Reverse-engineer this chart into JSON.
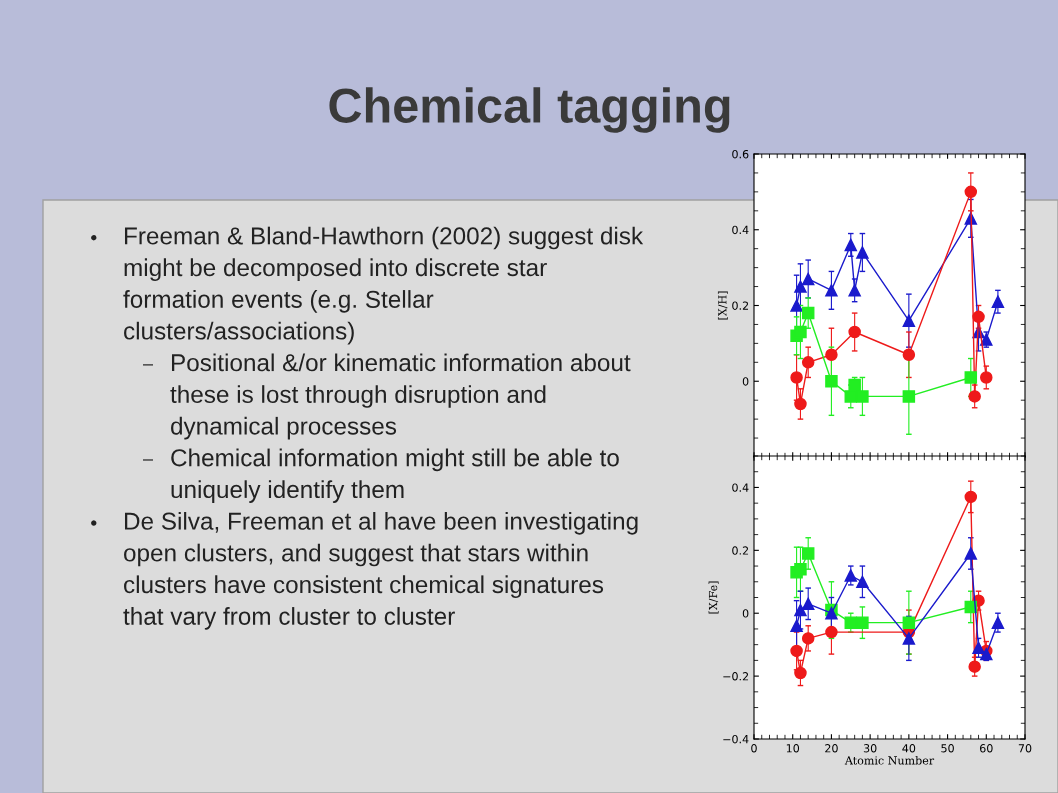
{
  "chart_data": [
    {
      "type": "line",
      "title": "Chemical tagging",
      "ylabel": "[X/H]",
      "annotations": [
        "● Freeman & Bland-Hawthorn (2002) suggest disk\nmight be decomposed into discrete star\nformation events (e.g. Stellar\nclusters/associations)",
        "– Positional &/or kinematic information about\nthese is lost through disruption and\ndynamical processes",
        "– Chemical information might still be able to\nuniquely identify them",
        "● De Silva, Freeman et al have been investigating\nopen clusters, and suggest that stars within\nclusters have consistent chemical signatures\nthat vary from cluster to cluster"
      ],
      "xlim": [
        0,
        70
      ],
      "xticks": [
        0,
        10,
        20,
        30,
        40,
        50,
        60,
        70
      ],
      "ylim": [
        -0.2,
        0.6
      ],
      "yticks": [
        0,
        0.2,
        0.4,
        0.6
      ],
      "tick_labels": "y",
      "series": [
        {
          "color": "#1a1acc",
          "marker": "triangle",
          "x": [
            11,
            12,
            14,
            20,
            25,
            26,
            28,
            40,
            56,
            58,
            60,
            63
          ],
          "values": [
            0.2,
            0.25,
            0.27,
            0.24,
            0.36,
            0.24,
            0.34,
            0.16,
            0.43,
            0.13,
            0.11,
            0.21
          ],
          "errors": [
            0.08,
            0.06,
            0.05,
            0.05,
            0.03,
            0.03,
            0.05,
            0.07,
            0.05,
            0.05,
            0.02,
            0.03
          ]
        },
        {
          "color": "#ee1a1a",
          "marker": "circle",
          "x": [
            11,
            12,
            14,
            20,
            26,
            40,
            56,
            57,
            58,
            60
          ],
          "values": [
            0.01,
            -0.06,
            0.05,
            0.07,
            0.13,
            0.07,
            0.5,
            -0.04,
            0.17,
            0.01
          ],
          "errors": [
            0.06,
            0.04,
            0.04,
            0.07,
            0.05,
            0.06,
            0.05,
            0.03,
            0.03,
            0.03
          ]
        },
        {
          "color": "#22ee22",
          "marker": "square",
          "x": [
            11,
            12,
            14,
            20,
            25,
            26,
            28,
            40,
            56
          ],
          "values": [
            0.12,
            0.13,
            0.18,
            0.0,
            -0.04,
            -0.01,
            -0.04,
            -0.04,
            0.01
          ],
          "errors": [
            0.05,
            0.07,
            0.04,
            0.09,
            0.03,
            0.02,
            0.05,
            0.1,
            0.05
          ]
        }
      ]
    },
    {
      "type": "line",
      "xlabel": "Atomic Number",
      "ylabel": "[X/Fe]",
      "xlim": [
        0,
        70
      ],
      "xticks": [
        0,
        10,
        20,
        30,
        40,
        50,
        60,
        70
      ],
      "ylim": [
        -0.4,
        0.5
      ],
      "yticks": [
        {
          "value": -0.4,
          "label": "−0.4"
        },
        {
          "value": -0.2,
          "label": "−0.2"
        },
        0,
        0.2,
        0.4
      ],
      "series": [
        {
          "color": "#ee1a1a",
          "marker": "circle",
          "x": [
            11,
            12,
            14,
            20,
            40,
            56,
            57,
            58,
            60
          ],
          "values": [
            -0.12,
            -0.19,
            -0.08,
            -0.06,
            -0.06,
            0.37,
            -0.17,
            0.04,
            -0.12
          ],
          "errors": [
            0.06,
            0.04,
            0.04,
            0.07,
            0.07,
            0.05,
            0.03,
            0.03,
            0.03
          ]
        },
        {
          "color": "#22ee22",
          "marker": "square",
          "x": [
            11,
            12,
            14,
            20,
            25,
            28,
            40,
            56
          ],
          "values": [
            0.13,
            0.14,
            0.19,
            0.01,
            -0.03,
            -0.03,
            -0.03,
            0.02
          ],
          "errors": [
            0.08,
            0.07,
            0.05,
            0.09,
            0.03,
            0.05,
            0.1,
            0.05
          ]
        },
        {
          "color": "#1a1acc",
          "marker": "triangle",
          "x": [
            11,
            12,
            14,
            20,
            25,
            28,
            40,
            56,
            58,
            60,
            63
          ],
          "values": [
            -0.04,
            0.01,
            0.03,
            0.0,
            0.12,
            0.1,
            -0.08,
            0.19,
            -0.11,
            -0.13,
            -0.03
          ],
          "errors": [
            0.08,
            0.06,
            0.05,
            0.05,
            0.03,
            0.05,
            0.07,
            0.05,
            0.03,
            0.02,
            0.03
          ]
        }
      ]
    }
  ]
}
